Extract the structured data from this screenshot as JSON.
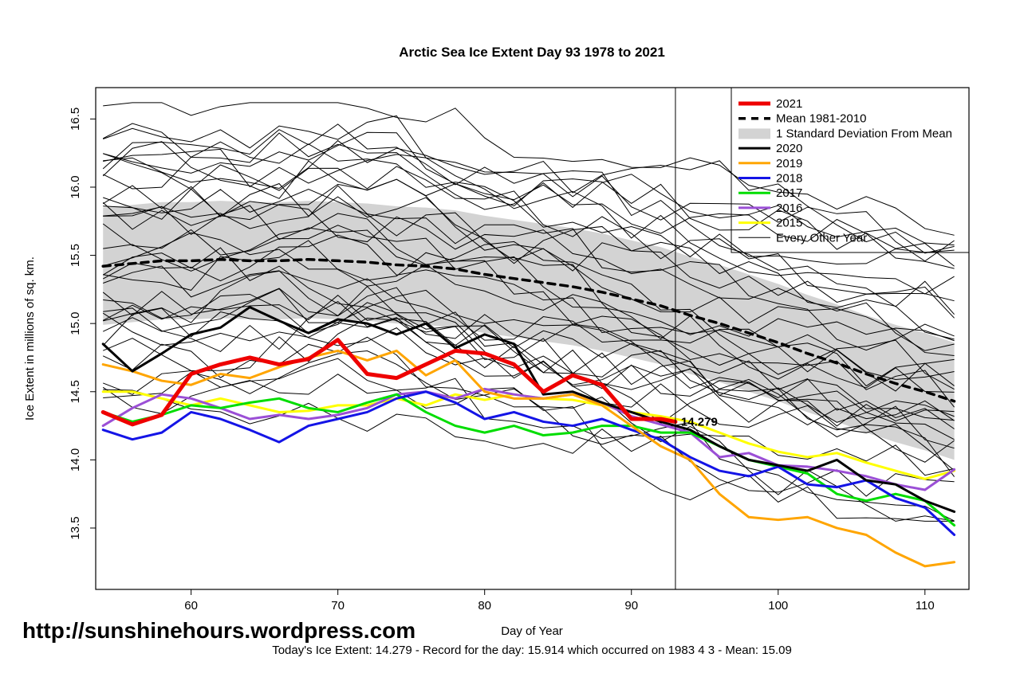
{
  "page": {
    "url_text": "http://sunshinehours.wordpress.com",
    "footer": "Today's Ice Extent: 14.279  - Record for the day: 15.914 which occurred on 1983 4 3  - Mean: 15.09"
  },
  "chart_data": {
    "type": "line",
    "title": "Arctic Sea Ice Extent Day 93 1978 to 2021",
    "xlabel": "Day of Year",
    "ylabel": "Ice Extent in millions of sq. km.",
    "xlim": [
      53.5,
      113
    ],
    "ylim": [
      13.05,
      16.73
    ],
    "x_ticks": [
      60,
      70,
      80,
      90,
      100,
      110
    ],
    "x_tick_labels": [
      "60",
      "70",
      "80",
      "90",
      "100",
      "110"
    ],
    "y_ticks": [
      13.5,
      14.0,
      14.5,
      15.0,
      15.5,
      16.0,
      16.5
    ],
    "y_tick_labels": [
      "13.5",
      "14.0",
      "14.5",
      "15.0",
      "15.5",
      "16.0",
      "16.5"
    ],
    "grid": false,
    "marker_day": 93,
    "annotation": {
      "text": "14.279",
      "day": 93,
      "value": 14.279,
      "color": "#ee2222"
    },
    "x": [
      54,
      56,
      58,
      60,
      62,
      64,
      66,
      68,
      70,
      72,
      74,
      76,
      78,
      80,
      82,
      84,
      86,
      88,
      90,
      92,
      94,
      96,
      98,
      100,
      102,
      104,
      106,
      108,
      110,
      112
    ],
    "band": {
      "label": "1 Standard Deviation From Mean",
      "around_series": "Mean 1981-2010",
      "sd": 0.43,
      "color": "#d3d3d3"
    },
    "background": {
      "label": "Every Other Year",
      "count": 37,
      "color": "#000000",
      "width": 1,
      "seed": 7,
      "note": "thin unlabeled lines for years 1978-2014, approximate range 14.3-16.6 declining to 13.6-15.6"
    },
    "series": [
      {
        "name": "2015",
        "color": "#ffff00",
        "width": 3,
        "values": [
          14.5,
          14.5,
          14.45,
          14.4,
          14.45,
          14.4,
          14.35,
          14.36,
          14.4,
          14.4,
          14.45,
          14.4,
          14.48,
          14.44,
          14.48,
          14.45,
          14.44,
          14.4,
          14.35,
          14.32,
          14.28,
          14.2,
          14.12,
          14.06,
          14.02,
          14.05,
          13.98,
          13.92,
          13.86,
          13.92
        ]
      },
      {
        "name": "2016",
        "color": "#9b4fd6",
        "width": 3,
        "values": [
          14.25,
          14.38,
          14.48,
          14.45,
          14.38,
          14.3,
          14.33,
          14.3,
          14.33,
          14.38,
          14.48,
          14.5,
          14.45,
          14.52,
          14.48,
          14.45,
          14.48,
          14.42,
          14.32,
          14.26,
          14.2,
          14.02,
          14.05,
          13.96,
          13.95,
          13.92,
          13.88,
          13.82,
          13.78,
          13.93
        ]
      },
      {
        "name": "2017",
        "color": "#00dd00",
        "width": 3,
        "values": [
          14.35,
          14.28,
          14.33,
          14.4,
          14.38,
          14.42,
          14.45,
          14.38,
          14.35,
          14.42,
          14.48,
          14.35,
          14.25,
          14.2,
          14.25,
          14.18,
          14.2,
          14.25,
          14.25,
          14.2,
          14.2,
          14.1,
          14.0,
          13.95,
          13.9,
          13.75,
          13.7,
          13.75,
          13.7,
          13.52
        ]
      },
      {
        "name": "2018",
        "color": "#1414e6",
        "width": 3,
        "values": [
          14.22,
          14.15,
          14.2,
          14.35,
          14.3,
          14.22,
          14.13,
          14.25,
          14.3,
          14.35,
          14.45,
          14.5,
          14.42,
          14.3,
          14.35,
          14.28,
          14.25,
          14.3,
          14.22,
          14.15,
          14.02,
          13.92,
          13.88,
          13.95,
          13.82,
          13.8,
          13.85,
          13.72,
          13.65,
          13.45
        ]
      },
      {
        "name": "2019",
        "color": "#ffa500",
        "width": 3,
        "values": [
          14.7,
          14.65,
          14.58,
          14.55,
          14.63,
          14.6,
          14.68,
          14.75,
          14.8,
          14.73,
          14.8,
          14.62,
          14.73,
          14.5,
          14.45,
          14.45,
          14.48,
          14.4,
          14.25,
          14.1,
          14.0,
          13.75,
          13.58,
          13.56,
          13.58,
          13.5,
          13.45,
          13.32,
          13.22,
          13.25
        ]
      },
      {
        "name": "2020",
        "color": "#000000",
        "width": 3,
        "values": [
          14.85,
          14.65,
          14.78,
          14.92,
          14.97,
          15.12,
          15.02,
          14.93,
          15.03,
          15.0,
          14.92,
          15.0,
          14.82,
          14.92,
          14.85,
          14.48,
          14.5,
          14.42,
          14.35,
          14.28,
          14.22,
          14.1,
          14.0,
          13.96,
          13.92,
          14.0,
          13.85,
          13.82,
          13.7,
          13.62
        ]
      },
      {
        "name": "Mean 1981-2010",
        "color": "#000000",
        "width": 3.5,
        "dash": "9,7",
        "values": [
          15.42,
          15.44,
          15.46,
          15.46,
          15.47,
          15.46,
          15.46,
          15.47,
          15.46,
          15.45,
          15.43,
          15.42,
          15.4,
          15.36,
          15.33,
          15.3,
          15.27,
          15.23,
          15.18,
          15.13,
          15.06,
          15.0,
          14.93,
          14.86,
          14.78,
          14.71,
          14.63,
          14.56,
          14.5,
          14.43
        ]
      },
      {
        "name": "2021",
        "color": "#ee0000",
        "width": 5,
        "x": [
          54,
          56,
          58,
          60,
          62,
          64,
          66,
          68,
          70,
          72,
          74,
          76,
          78,
          80,
          82,
          84,
          86,
          88,
          90,
          92,
          93
        ],
        "values": [
          14.35,
          14.26,
          14.33,
          14.63,
          14.7,
          14.75,
          14.7,
          14.74,
          14.88,
          14.63,
          14.6,
          14.7,
          14.8,
          14.78,
          14.7,
          14.5,
          14.62,
          14.55,
          14.3,
          14.3,
          14.279
        ]
      }
    ],
    "legend": {
      "position": "top-right",
      "entries": [
        {
          "label": "2021",
          "type": "line",
          "color": "#ee0000",
          "width": 5
        },
        {
          "label": "Mean 1981-2010",
          "type": "line",
          "color": "#000000",
          "width": 3.5,
          "dash": "9,7"
        },
        {
          "label": "1 Standard Deviation From Mean",
          "type": "band",
          "color": "#d3d3d3"
        },
        {
          "label": "2020",
          "type": "line",
          "color": "#000000",
          "width": 3
        },
        {
          "label": "2019",
          "type": "line",
          "color": "#ffa500",
          "width": 3
        },
        {
          "label": "2018",
          "type": "line",
          "color": "#1414e6",
          "width": 3
        },
        {
          "label": "2017",
          "type": "line",
          "color": "#00dd00",
          "width": 3
        },
        {
          "label": "2016",
          "type": "line",
          "color": "#9b4fd6",
          "width": 3
        },
        {
          "label": "2015",
          "type": "line",
          "color": "#ffff00",
          "width": 3
        },
        {
          "label": "Every Other Year",
          "type": "line",
          "color": "#000000",
          "width": 1
        }
      ]
    }
  }
}
